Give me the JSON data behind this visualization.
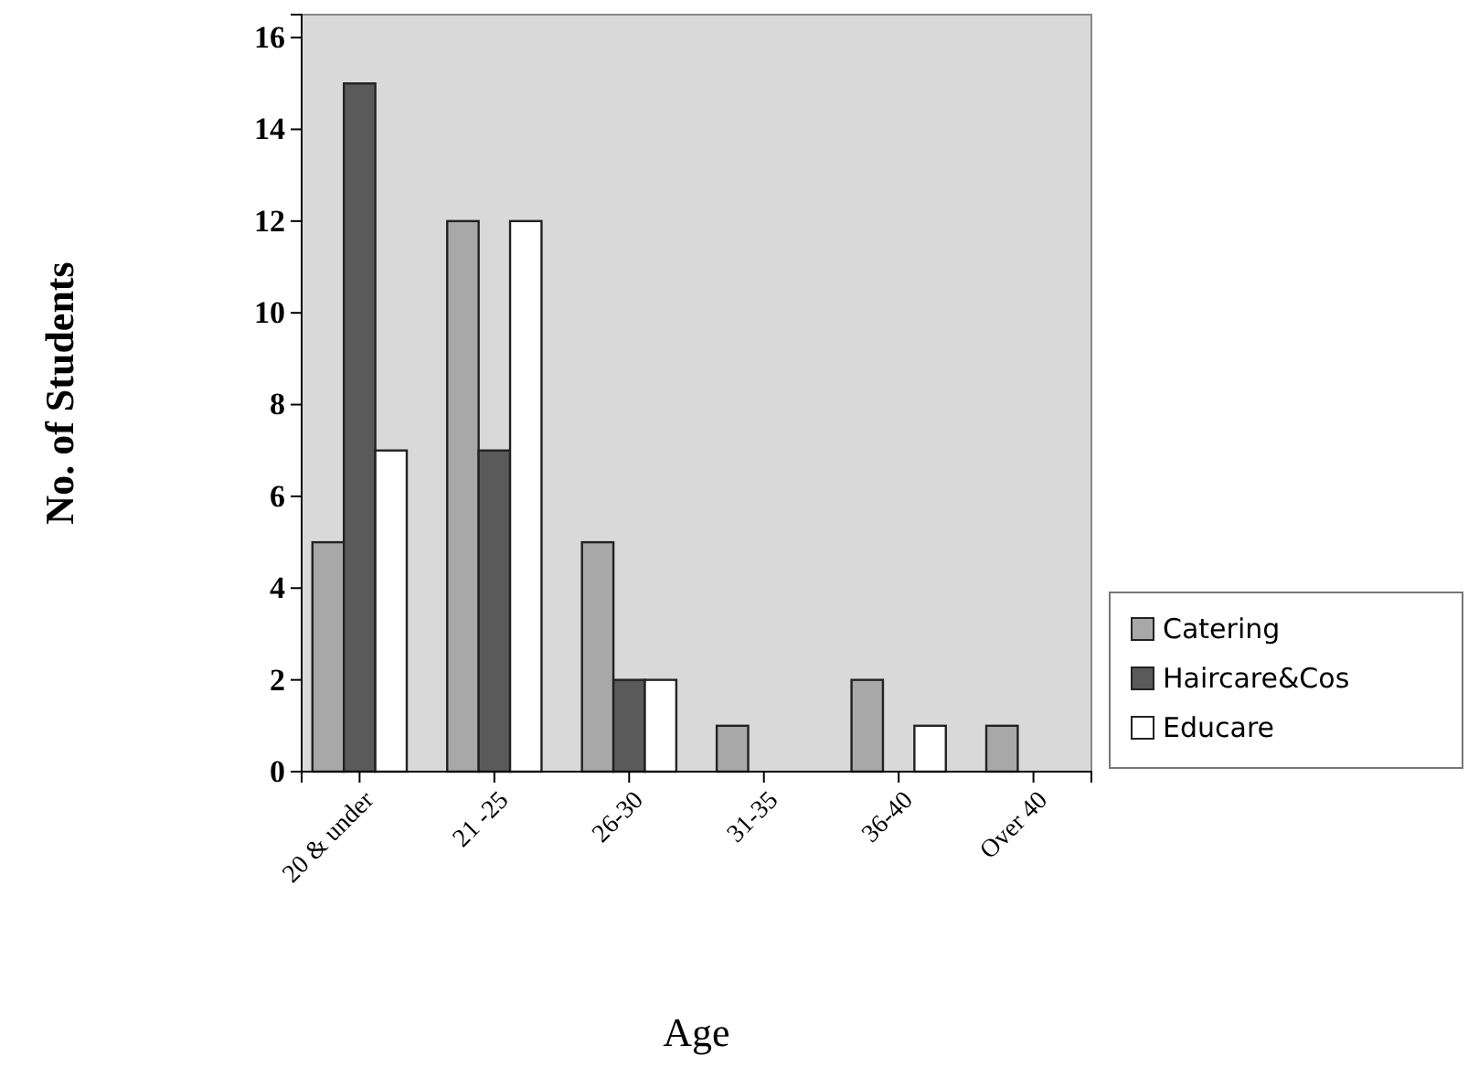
{
  "chart_data": {
    "type": "bar",
    "xlabel": "Age",
    "ylabel": "No. of Students",
    "categories": [
      "20 & under",
      "21 -25",
      "26-30",
      "31-35",
      "36-40",
      "Over 40"
    ],
    "series": [
      {
        "name": "Catering",
        "color": "#a8a8a8",
        "values": [
          5,
          12,
          5,
          1,
          2,
          1
        ]
      },
      {
        "name": "Haircare&Cos",
        "color": "#5a5a5a",
        "values": [
          15,
          7,
          2,
          0,
          0,
          0
        ]
      },
      {
        "name": "Educare",
        "color": "#ffffff",
        "values": [
          7,
          12,
          2,
          0,
          1,
          0
        ]
      }
    ],
    "ylim": [
      0,
      16.5
    ],
    "yticks": [
      0,
      2,
      4,
      6,
      8,
      10,
      12,
      14,
      16
    ],
    "legend": "right"
  }
}
